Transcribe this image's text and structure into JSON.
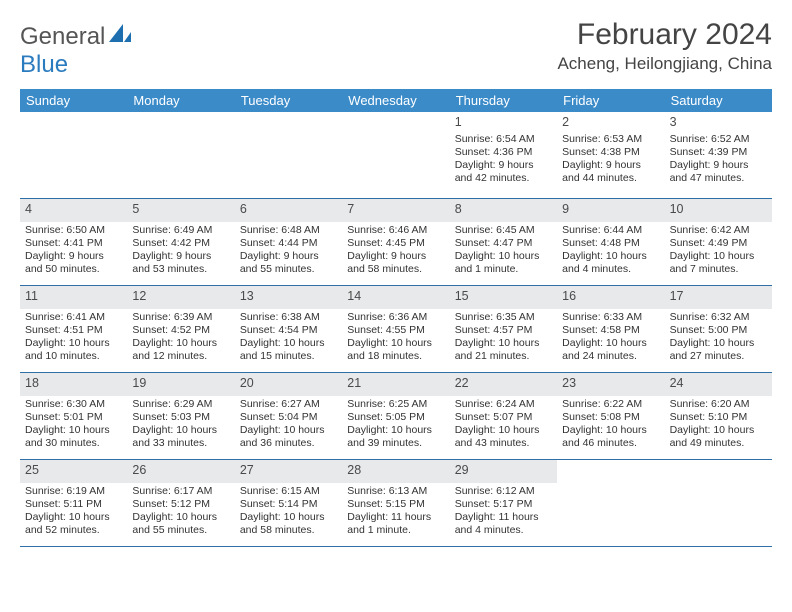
{
  "logo": {
    "text1": "General",
    "text2": "Blue"
  },
  "title": "February 2024",
  "location": "Acheng, Heilongjiang, China",
  "header_bg": "#3b8bc9",
  "divider_color": "#2f6fa6",
  "shade_color": "#e7e9eb",
  "weekdays": [
    "Sunday",
    "Monday",
    "Tuesday",
    "Wednesday",
    "Thursday",
    "Friday",
    "Saturday"
  ],
  "weeks": [
    {
      "shaded": false,
      "days": [
        null,
        null,
        null,
        null,
        {
          "n": "1",
          "sr": "Sunrise: 6:54 AM",
          "ss": "Sunset: 4:36 PM",
          "dl": "Daylight: 9 hours and 42 minutes."
        },
        {
          "n": "2",
          "sr": "Sunrise: 6:53 AM",
          "ss": "Sunset: 4:38 PM",
          "dl": "Daylight: 9 hours and 44 minutes."
        },
        {
          "n": "3",
          "sr": "Sunrise: 6:52 AM",
          "ss": "Sunset: 4:39 PM",
          "dl": "Daylight: 9 hours and 47 minutes."
        }
      ]
    },
    {
      "shaded": true,
      "days": [
        {
          "n": "4",
          "sr": "Sunrise: 6:50 AM",
          "ss": "Sunset: 4:41 PM",
          "dl": "Daylight: 9 hours and 50 minutes."
        },
        {
          "n": "5",
          "sr": "Sunrise: 6:49 AM",
          "ss": "Sunset: 4:42 PM",
          "dl": "Daylight: 9 hours and 53 minutes."
        },
        {
          "n": "6",
          "sr": "Sunrise: 6:48 AM",
          "ss": "Sunset: 4:44 PM",
          "dl": "Daylight: 9 hours and 55 minutes."
        },
        {
          "n": "7",
          "sr": "Sunrise: 6:46 AM",
          "ss": "Sunset: 4:45 PM",
          "dl": "Daylight: 9 hours and 58 minutes."
        },
        {
          "n": "8",
          "sr": "Sunrise: 6:45 AM",
          "ss": "Sunset: 4:47 PM",
          "dl": "Daylight: 10 hours and 1 minute."
        },
        {
          "n": "9",
          "sr": "Sunrise: 6:44 AM",
          "ss": "Sunset: 4:48 PM",
          "dl": "Daylight: 10 hours and 4 minutes."
        },
        {
          "n": "10",
          "sr": "Sunrise: 6:42 AM",
          "ss": "Sunset: 4:49 PM",
          "dl": "Daylight: 10 hours and 7 minutes."
        }
      ]
    },
    {
      "shaded": true,
      "days": [
        {
          "n": "11",
          "sr": "Sunrise: 6:41 AM",
          "ss": "Sunset: 4:51 PM",
          "dl": "Daylight: 10 hours and 10 minutes."
        },
        {
          "n": "12",
          "sr": "Sunrise: 6:39 AM",
          "ss": "Sunset: 4:52 PM",
          "dl": "Daylight: 10 hours and 12 minutes."
        },
        {
          "n": "13",
          "sr": "Sunrise: 6:38 AM",
          "ss": "Sunset: 4:54 PM",
          "dl": "Daylight: 10 hours and 15 minutes."
        },
        {
          "n": "14",
          "sr": "Sunrise: 6:36 AM",
          "ss": "Sunset: 4:55 PM",
          "dl": "Daylight: 10 hours and 18 minutes."
        },
        {
          "n": "15",
          "sr": "Sunrise: 6:35 AM",
          "ss": "Sunset: 4:57 PM",
          "dl": "Daylight: 10 hours and 21 minutes."
        },
        {
          "n": "16",
          "sr": "Sunrise: 6:33 AM",
          "ss": "Sunset: 4:58 PM",
          "dl": "Daylight: 10 hours and 24 minutes."
        },
        {
          "n": "17",
          "sr": "Sunrise: 6:32 AM",
          "ss": "Sunset: 5:00 PM",
          "dl": "Daylight: 10 hours and 27 minutes."
        }
      ]
    },
    {
      "shaded": true,
      "days": [
        {
          "n": "18",
          "sr": "Sunrise: 6:30 AM",
          "ss": "Sunset: 5:01 PM",
          "dl": "Daylight: 10 hours and 30 minutes."
        },
        {
          "n": "19",
          "sr": "Sunrise: 6:29 AM",
          "ss": "Sunset: 5:03 PM",
          "dl": "Daylight: 10 hours and 33 minutes."
        },
        {
          "n": "20",
          "sr": "Sunrise: 6:27 AM",
          "ss": "Sunset: 5:04 PM",
          "dl": "Daylight: 10 hours and 36 minutes."
        },
        {
          "n": "21",
          "sr": "Sunrise: 6:25 AM",
          "ss": "Sunset: 5:05 PM",
          "dl": "Daylight: 10 hours and 39 minutes."
        },
        {
          "n": "22",
          "sr": "Sunrise: 6:24 AM",
          "ss": "Sunset: 5:07 PM",
          "dl": "Daylight: 10 hours and 43 minutes."
        },
        {
          "n": "23",
          "sr": "Sunrise: 6:22 AM",
          "ss": "Sunset: 5:08 PM",
          "dl": "Daylight: 10 hours and 46 minutes."
        },
        {
          "n": "24",
          "sr": "Sunrise: 6:20 AM",
          "ss": "Sunset: 5:10 PM",
          "dl": "Daylight: 10 hours and 49 minutes."
        }
      ]
    },
    {
      "shaded": true,
      "days": [
        {
          "n": "25",
          "sr": "Sunrise: 6:19 AM",
          "ss": "Sunset: 5:11 PM",
          "dl": "Daylight: 10 hours and 52 minutes."
        },
        {
          "n": "26",
          "sr": "Sunrise: 6:17 AM",
          "ss": "Sunset: 5:12 PM",
          "dl": "Daylight: 10 hours and 55 minutes."
        },
        {
          "n": "27",
          "sr": "Sunrise: 6:15 AM",
          "ss": "Sunset: 5:14 PM",
          "dl": "Daylight: 10 hours and 58 minutes."
        },
        {
          "n": "28",
          "sr": "Sunrise: 6:13 AM",
          "ss": "Sunset: 5:15 PM",
          "dl": "Daylight: 11 hours and 1 minute."
        },
        {
          "n": "29",
          "sr": "Sunrise: 6:12 AM",
          "ss": "Sunset: 5:17 PM",
          "dl": "Daylight: 11 hours and 4 minutes."
        },
        null,
        null
      ]
    }
  ]
}
